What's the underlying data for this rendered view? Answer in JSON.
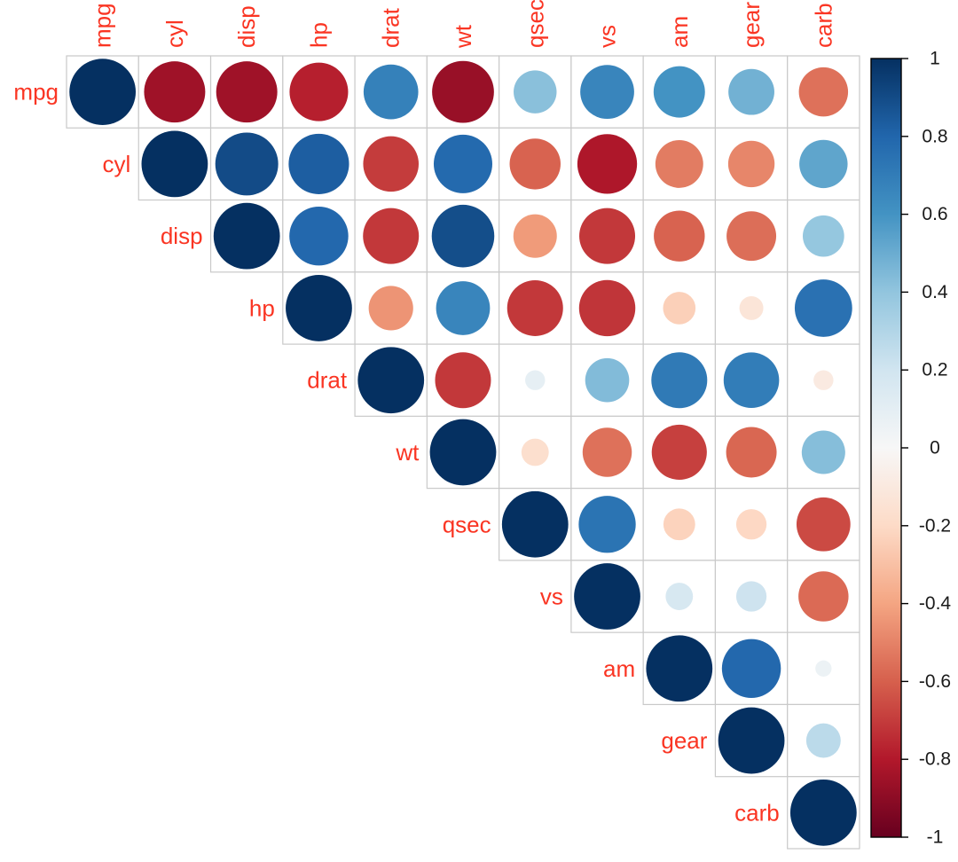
{
  "chart_data": {
    "type": "heatmap",
    "subtype": "correlation-matrix-circles",
    "title": "",
    "layout": "upper-triangle-with-diagonal",
    "legend_position": "right-colorbar",
    "variables": [
      "mpg",
      "cyl",
      "disp",
      "hp",
      "drat",
      "wt",
      "qsec",
      "vs",
      "am",
      "gear",
      "carb"
    ],
    "matrix": [
      [
        1.0,
        -0.85,
        -0.85,
        -0.78,
        0.68,
        -0.87,
        0.42,
        0.66,
        0.6,
        0.48,
        -0.55
      ],
      [
        -0.85,
        1.0,
        0.9,
        0.83,
        -0.7,
        0.78,
        -0.59,
        -0.81,
        -0.52,
        -0.49,
        0.53
      ],
      [
        -0.85,
        0.9,
        1.0,
        0.79,
        -0.71,
        0.89,
        -0.43,
        -0.71,
        -0.59,
        -0.56,
        0.39
      ],
      [
        -0.78,
        0.83,
        0.79,
        1.0,
        -0.45,
        0.66,
        -0.71,
        -0.72,
        -0.24,
        -0.13,
        0.75
      ],
      [
        0.68,
        -0.7,
        -0.71,
        -0.45,
        1.0,
        -0.71,
        0.09,
        0.44,
        0.71,
        0.7,
        -0.09
      ],
      [
        -0.87,
        0.78,
        0.89,
        0.66,
        -0.71,
        1.0,
        -0.17,
        -0.55,
        -0.69,
        -0.58,
        0.43
      ],
      [
        0.42,
        -0.59,
        -0.43,
        -0.71,
        0.09,
        -0.17,
        1.0,
        0.74,
        -0.23,
        -0.21,
        -0.66
      ],
      [
        0.66,
        -0.81,
        -0.71,
        -0.72,
        0.44,
        -0.55,
        0.74,
        1.0,
        0.17,
        0.21,
        -0.57
      ],
      [
        0.6,
        -0.52,
        -0.59,
        -0.24,
        0.71,
        -0.69,
        -0.23,
        0.17,
        1.0,
        0.79,
        0.06
      ],
      [
        0.48,
        -0.49,
        -0.56,
        -0.13,
        0.7,
        -0.58,
        -0.21,
        0.21,
        0.79,
        1.0,
        0.27
      ],
      [
        -0.55,
        0.53,
        0.39,
        0.75,
        -0.09,
        0.43,
        -0.66,
        -0.57,
        0.06,
        0.27,
        1.0
      ]
    ],
    "colorbar": {
      "min": -1,
      "max": 1,
      "tick_labels": [
        "1",
        "0.8",
        "0.6",
        "0.4",
        "0.2",
        "0",
        "-0.2",
        "-0.4",
        "-0.6",
        "-0.8",
        "-1"
      ],
      "palette_stops_top_to_bottom": [
        "#053061",
        "#2166AC",
        "#4393C3",
        "#92C5DE",
        "#D1E5F0",
        "#F7F7F7",
        "#FDDBC7",
        "#F4A582",
        "#D6604D",
        "#B2182B",
        "#67001F"
      ]
    },
    "colors": {
      "variable_label_text": "#fa3523",
      "tick_label_text": "#1a1a1a",
      "grid_line": "#c9c9c9",
      "cell_background": "#ffffff",
      "page_background": "#ffffff",
      "colorbar_border": "#000000"
    }
  }
}
